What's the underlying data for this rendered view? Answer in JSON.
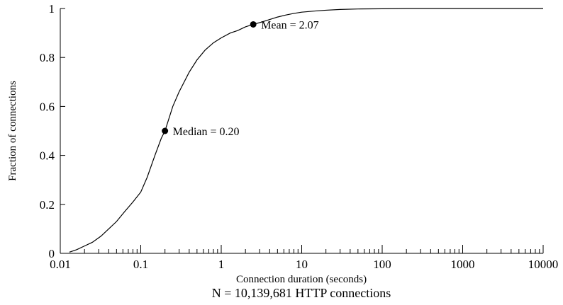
{
  "chart_data": {
    "type": "line",
    "xscale": "log",
    "xlim": [
      0.01,
      10000
    ],
    "ylim": [
      0,
      1
    ],
    "xlabel": "Connection duration (seconds)",
    "ylabel": "Fraction of connections",
    "caption": "N = 10,139,681 HTTP connections",
    "grid": false,
    "x_ticks": [
      0.01,
      0.1,
      1,
      10,
      100,
      1000,
      10000
    ],
    "x_tick_labels": [
      "0.01",
      "0.1",
      "1",
      "10",
      "100",
      "1000",
      "10000"
    ],
    "y_ticks": [
      0,
      0.2,
      0.4,
      0.6,
      0.8,
      1
    ],
    "y_tick_labels": [
      "0",
      "0.2",
      "0.4",
      "0.6",
      "0.8",
      "1"
    ],
    "series": [
      {
        "x": [
          0.013,
          0.016,
          0.02,
          0.025,
          0.032,
          0.04,
          0.05,
          0.063,
          0.08,
          0.1,
          0.12,
          0.15,
          0.18,
          0.2,
          0.25,
          0.3,
          0.4,
          0.5,
          0.63,
          0.8,
          1,
          1.3,
          1.6,
          2,
          2.5,
          3.2,
          4,
          5,
          6.3,
          8,
          10,
          15,
          20,
          30,
          50,
          100,
          200,
          1000,
          10000
        ],
        "y": [
          0.005,
          0.015,
          0.03,
          0.045,
          0.07,
          0.1,
          0.13,
          0.17,
          0.21,
          0.25,
          0.31,
          0.4,
          0.47,
          0.5,
          0.6,
          0.66,
          0.74,
          0.79,
          0.83,
          0.86,
          0.88,
          0.9,
          0.91,
          0.925,
          0.935,
          0.945,
          0.955,
          0.965,
          0.973,
          0.98,
          0.985,
          0.99,
          0.993,
          0.996,
          0.998,
          0.999,
          1,
          1,
          1
        ]
      }
    ],
    "annotations": [
      {
        "label": "Median = 0.20",
        "x": 0.2,
        "y": 0.5
      },
      {
        "label": "Mean = 2.07",
        "x": 2.5,
        "y": 0.935
      }
    ]
  }
}
